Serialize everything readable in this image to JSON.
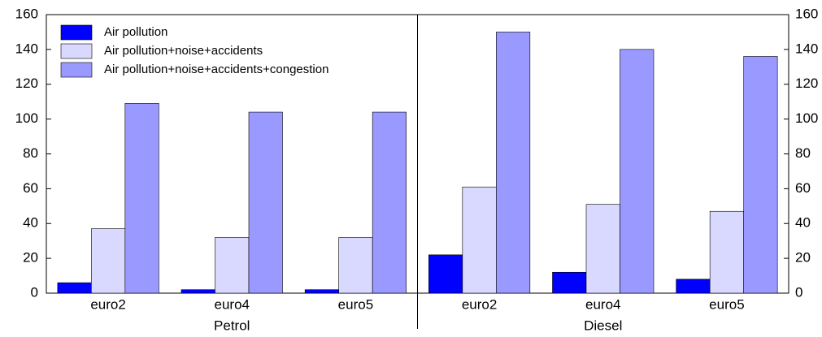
{
  "chart_data": {
    "type": "bar",
    "categories": [
      "euro2",
      "euro4",
      "euro5",
      "euro2",
      "euro4",
      "euro5"
    ],
    "groups": [
      "Petrol",
      "Diesel"
    ],
    "series": [
      {
        "name": "Air pollution",
        "color": "#0000ff",
        "values": [
          6,
          2,
          2,
          22,
          12,
          8
        ]
      },
      {
        "name": "Air pollution+noise+accidents",
        "color": "#d9d9ff",
        "values": [
          37,
          32,
          32,
          61,
          51,
          47
        ]
      },
      {
        "name": "Air pollution+noise+accidents+congestion",
        "color": "#9999ff",
        "values": [
          109,
          104,
          104,
          150,
          140,
          136
        ]
      }
    ],
    "ylim": [
      0,
      160
    ],
    "yticks": [
      0,
      20,
      40,
      60,
      80,
      100,
      120,
      140,
      160
    ],
    "y2lim": [
      0,
      160
    ],
    "y2ticks": [
      0,
      20,
      40,
      60,
      80,
      100,
      120,
      140,
      160
    ],
    "legend": "upper left"
  }
}
